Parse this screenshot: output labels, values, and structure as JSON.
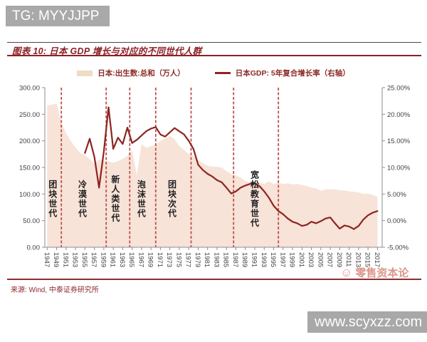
{
  "badge": {
    "text": "TG: MYYJJPP"
  },
  "header": {
    "title": "图表 10: 日本 GDP 增长与对应的不同世代人群"
  },
  "legend": {
    "items": [
      {
        "label": "日本:出生数:总和（万人）",
        "swatch": "area-beige"
      },
      {
        "label": "日本GDP: 5年复合增长率（右轴）",
        "swatch": "line-maroon"
      }
    ]
  },
  "footer": {
    "source": "来源: Wind, 中泰证券研究所",
    "site": "www.scyxzz.com"
  },
  "watermark": {
    "icon": "smiley-face",
    "text": "零售资本论"
  },
  "chart_data": {
    "type": "combo-area-line",
    "title": "日本GDP增长与对应的不同世代人群",
    "x_start": 1947,
    "x_tick_step_years": 2,
    "x_ticks": [
      "1947",
      "1949",
      "1951",
      "1953",
      "1955",
      "1957",
      "1959",
      "1961",
      "1963",
      "1965",
      "1967",
      "1969",
      "1971",
      "1973",
      "1975",
      "1977",
      "1979",
      "1981",
      "1983",
      "1985",
      "1987",
      "1989",
      "1991",
      "1993",
      "1995",
      "1997",
      "1999",
      "2001",
      "2003",
      "2005",
      "2007",
      "2009",
      "2011",
      "2013",
      "2015",
      "2017"
    ],
    "left_axis": {
      "min": 0,
      "max": 300,
      "step": 50,
      "ticks": [
        "300.00",
        "250.00",
        "200.00",
        "150.00",
        "100.00",
        "50.00",
        "0.00"
      ]
    },
    "right_axis": {
      "min": -5,
      "max": 25,
      "step": 5,
      "ticks": [
        "25.00%",
        "20.00%",
        "15.00%",
        "10.00%",
        "5.00%",
        "0.00%",
        "-5.00%"
      ]
    },
    "series": [
      {
        "name": "日本:出生数:总和（万人）",
        "type": "area",
        "axis": "left",
        "x_start": 1947,
        "values": [
          267,
          268,
          270,
          234,
          214,
          200,
          187,
          177,
          173,
          166,
          157,
          165,
          163,
          161,
          159,
          162,
          166,
          172,
          182,
          136,
          194,
          187,
          190,
          193,
          200,
          204,
          209,
          203,
          190,
          183,
          175,
          171,
          164,
          158,
          153,
          152,
          151,
          150,
          143,
          138,
          135,
          131,
          125,
          122,
          122,
          121,
          119,
          124,
          119,
          121,
          119,
          120,
          118,
          119,
          117,
          115,
          112,
          111,
          106,
          109,
          109,
          109,
          107,
          107,
          105,
          104,
          103,
          100,
          101,
          98,
          95
        ]
      },
      {
        "name": "日本GDP: 5年复合增长率（右轴）",
        "type": "line",
        "axis": "right",
        "x_start": 1955,
        "values": [
          12.7,
          15.4,
          12.0,
          6.2,
          13.0,
          21.3,
          13.5,
          15.6,
          14.4,
          17.5,
          14.6,
          15.2,
          16.0,
          16.8,
          17.3,
          17.6,
          16.2,
          15.8,
          16.6,
          17.4,
          16.8,
          16.2,
          15.0,
          13.5,
          10.5,
          9.5,
          8.8,
          8.3,
          7.6,
          7.2,
          6.2,
          5.1,
          5.5,
          6.2,
          6.6,
          6.9,
          7.0,
          6.5,
          5.5,
          4.3,
          2.8,
          1.8,
          1.2,
          0.4,
          -0.2,
          -0.5,
          -1.0,
          -0.8,
          -0.2,
          -0.5,
          -0.1,
          0.4,
          0.6,
          -0.5,
          -1.5,
          -0.9,
          -1.1,
          -1.6,
          -1.0,
          0.2,
          1.0,
          1.5,
          1.8
        ]
      }
    ],
    "generation_dividers_years": [
      1950,
      1959.5,
      1964.5,
      1970,
      1977.5,
      1986.5,
      1996
    ],
    "generations": [
      {
        "label": "团块世代",
        "center_year": 1948.2
      },
      {
        "label": "冷漠世代",
        "center_year": 1954.5
      },
      {
        "label": "新人类世代",
        "center_year": 1961.5
      },
      {
        "label": "泡沫世代",
        "center_year": 1967
      },
      {
        "label": "团块次代",
        "center_year": 1973.5
      },
      {
        "label": "宽松教育世代",
        "center_year": 1991
      }
    ],
    "legend_position": "top",
    "grid": "off",
    "colors": {
      "area": "#f7e3d8",
      "line": "#8e2420",
      "divider": "#c0504d",
      "axis": "#8c8c8c",
      "axis_text": "#3f3f3f",
      "generation_text": "#1f1f1f",
      "title_red": "#8d1f26",
      "badge_gray": "#a9a9a9",
      "watermark_pink": "#dc968c"
    }
  }
}
